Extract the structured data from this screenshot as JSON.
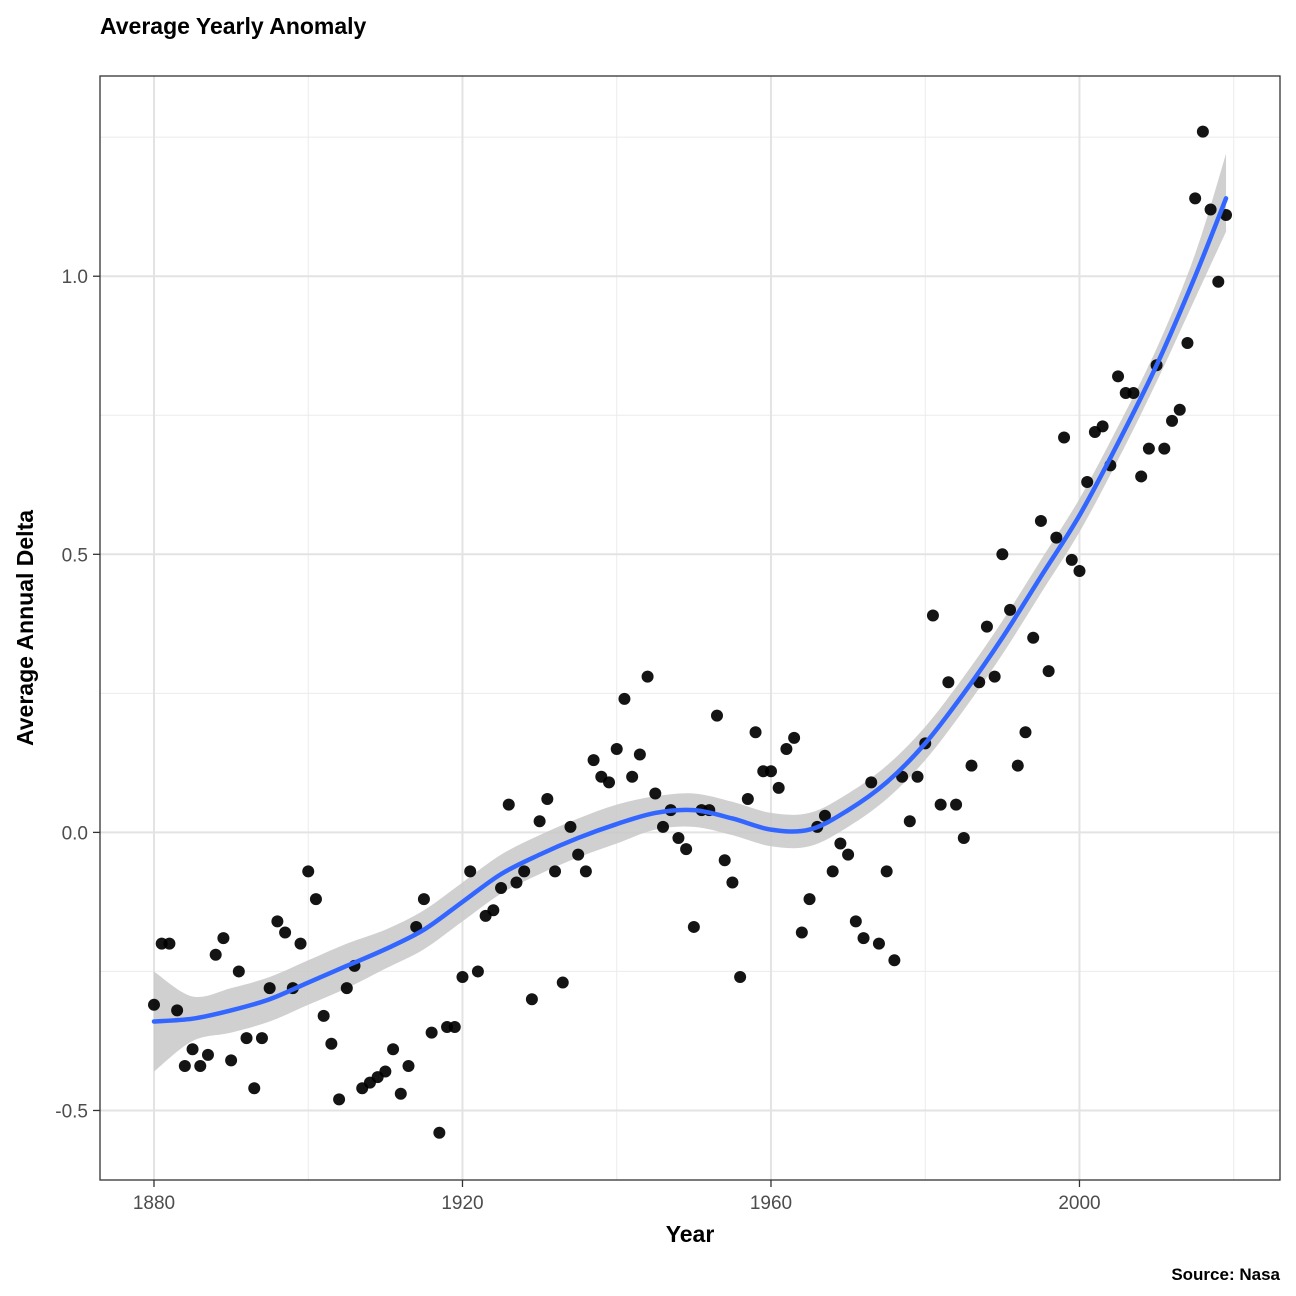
{
  "chart_data": {
    "type": "scatter",
    "title": "Average Yearly Anomaly",
    "xlabel": "Year",
    "ylabel": "Average Annual Delta",
    "caption": "Source: Nasa",
    "xlim": [
      1873,
      2026
    ],
    "ylim": [
      -0.625,
      1.36
    ],
    "x_ticks": [
      1880,
      1920,
      1960,
      2000
    ],
    "x_tick_labels": [
      "1880",
      "1920",
      "1960",
      "2000"
    ],
    "y_ticks": [
      -0.5,
      0.0,
      0.5,
      1.0
    ],
    "y_tick_labels": [
      "-0.5",
      "0.0",
      "0.5",
      "1.0"
    ],
    "grid": true,
    "legend": "none",
    "colors": {
      "points": "#000000",
      "smooth_line": "#3366ff",
      "confidence_band": "#c8c8c8",
      "grid": "#ebebeb",
      "panel_border": "#333333"
    },
    "series": [
      {
        "type": "points",
        "x": [
          1880,
          1881,
          1882,
          1883,
          1884,
          1885,
          1886,
          1887,
          1888,
          1889,
          1890,
          1891,
          1892,
          1893,
          1894,
          1895,
          1896,
          1897,
          1898,
          1899,
          1900,
          1901,
          1902,
          1903,
          1904,
          1905,
          1906,
          1907,
          1908,
          1909,
          1910,
          1911,
          1912,
          1913,
          1914,
          1915,
          1916,
          1917,
          1918,
          1919,
          1920,
          1921,
          1922,
          1923,
          1924,
          1925,
          1926,
          1927,
          1928,
          1929,
          1930,
          1931,
          1932,
          1933,
          1934,
          1935,
          1936,
          1937,
          1938,
          1939,
          1940,
          1941,
          1942,
          1943,
          1944,
          1945,
          1946,
          1947,
          1948,
          1949,
          1950,
          1951,
          1952,
          1953,
          1954,
          1955,
          1956,
          1957,
          1958,
          1959,
          1960,
          1961,
          1962,
          1963,
          1964,
          1965,
          1966,
          1967,
          1968,
          1969,
          1970,
          1971,
          1972,
          1973,
          1974,
          1975,
          1976,
          1977,
          1978,
          1979,
          1980,
          1981,
          1982,
          1983,
          1984,
          1985,
          1986,
          1987,
          1988,
          1989,
          1990,
          1991,
          1992,
          1993,
          1994,
          1995,
          1996,
          1997,
          1998,
          1999,
          2000,
          2001,
          2002,
          2003,
          2004,
          2005,
          2006,
          2007,
          2008,
          2009,
          2010,
          2011,
          2012,
          2013,
          2014,
          2015,
          2016,
          2017,
          2018,
          2019
        ],
        "y": [
          -0.31,
          -0.2,
          -0.2,
          -0.32,
          -0.42,
          -0.39,
          -0.42,
          -0.4,
          -0.22,
          -0.19,
          -0.41,
          -0.25,
          -0.37,
          -0.46,
          -0.37,
          -0.28,
          -0.16,
          -0.18,
          -0.28,
          -0.2,
          -0.07,
          -0.12,
          -0.33,
          -0.38,
          -0.48,
          -0.28,
          -0.24,
          -0.46,
          -0.45,
          -0.44,
          -0.43,
          -0.39,
          -0.47,
          -0.42,
          -0.17,
          -0.12,
          -0.36,
          -0.54,
          -0.35,
          -0.35,
          -0.26,
          -0.07,
          -0.25,
          -0.15,
          -0.14,
          -0.1,
          0.05,
          -0.09,
          -0.07,
          -0.3,
          0.02,
          0.06,
          -0.07,
          -0.27,
          0.01,
          -0.04,
          -0.07,
          0.13,
          0.1,
          0.09,
          0.15,
          0.24,
          0.1,
          0.14,
          0.28,
          0.07,
          0.01,
          0.04,
          -0.01,
          -0.03,
          -0.17,
          0.04,
          0.04,
          0.21,
          -0.05,
          -0.09,
          -0.26,
          0.06,
          0.18,
          0.11,
          0.11,
          0.08,
          0.15,
          0.17,
          -0.18,
          -0.12,
          0.01,
          0.03,
          -0.07,
          -0.02,
          -0.04,
          -0.16,
          -0.19,
          0.09,
          -0.2,
          -0.07,
          -0.23,
          0.1,
          0.02,
          0.1,
          0.16,
          0.39,
          0.05,
          0.27,
          0.05,
          -0.01,
          0.12,
          0.27,
          0.37,
          0.28,
          0.5,
          0.4,
          0.12,
          0.18,
          0.35,
          0.56,
          0.29,
          0.53,
          0.71,
          0.49,
          0.47,
          0.63,
          0.72,
          0.73,
          0.66,
          0.82,
          0.79,
          0.79,
          0.64,
          0.69,
          0.84,
          0.69,
          0.74,
          0.76,
          0.88,
          1.14,
          1.26,
          1.12,
          0.99,
          1.11
        ]
      },
      {
        "type": "smooth",
        "x": [
          1880,
          1885,
          1890,
          1895,
          1900,
          1905,
          1910,
          1915,
          1920,
          1925,
          1930,
          1935,
          1940,
          1945,
          1950,
          1955,
          1960,
          1965,
          1970,
          1975,
          1980,
          1985,
          1990,
          1995,
          2000,
          2005,
          2010,
          2015,
          2019
        ],
        "y": [
          -0.34,
          -0.335,
          -0.32,
          -0.3,
          -0.27,
          -0.24,
          -0.21,
          -0.175,
          -0.125,
          -0.075,
          -0.04,
          -0.01,
          0.015,
          0.035,
          0.04,
          0.025,
          0.005,
          0.005,
          0.04,
          0.09,
          0.16,
          0.25,
          0.35,
          0.46,
          0.57,
          0.7,
          0.84,
          1.0,
          1.14
        ],
        "lower": [
          -0.43,
          -0.375,
          -0.36,
          -0.34,
          -0.31,
          -0.28,
          -0.245,
          -0.21,
          -0.16,
          -0.11,
          -0.075,
          -0.045,
          -0.02,
          0.005,
          0.01,
          -0.005,
          -0.025,
          -0.025,
          0.01,
          0.06,
          0.13,
          0.22,
          0.32,
          0.43,
          0.54,
          0.67,
          0.81,
          0.96,
          1.08
        ],
        "upper": [
          -0.25,
          -0.295,
          -0.28,
          -0.26,
          -0.23,
          -0.2,
          -0.175,
          -0.14,
          -0.09,
          -0.04,
          -0.005,
          0.025,
          0.05,
          0.065,
          0.07,
          0.055,
          0.035,
          0.035,
          0.07,
          0.12,
          0.19,
          0.28,
          0.38,
          0.49,
          0.6,
          0.73,
          0.87,
          1.04,
          1.22
        ]
      }
    ]
  }
}
